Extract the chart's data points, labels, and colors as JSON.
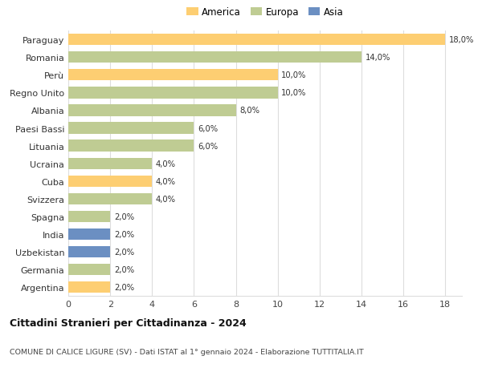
{
  "countries": [
    "Paraguay",
    "Romania",
    "Perù",
    "Regno Unito",
    "Albania",
    "Paesi Bassi",
    "Lituania",
    "Ucraina",
    "Cuba",
    "Svizzera",
    "Spagna",
    "India",
    "Uzbekistan",
    "Germania",
    "Argentina"
  ],
  "values": [
    18.0,
    14.0,
    10.0,
    10.0,
    8.0,
    6.0,
    6.0,
    4.0,
    4.0,
    4.0,
    2.0,
    2.0,
    2.0,
    2.0,
    2.0
  ],
  "continents": [
    "America",
    "Europa",
    "America",
    "Europa",
    "Europa",
    "Europa",
    "Europa",
    "Europa",
    "America",
    "Europa",
    "Europa",
    "Asia",
    "Asia",
    "Europa",
    "America"
  ],
  "colors": {
    "America": "#FDCE72",
    "Europa": "#BFCC93",
    "Asia": "#6B8FC2"
  },
  "legend_order": [
    "America",
    "Europa",
    "Asia"
  ],
  "title": "Cittadini Stranieri per Cittadinanza - 2024",
  "subtitle": "COMUNE DI CALICE LIGURE (SV) - Dati ISTAT al 1° gennaio 2024 - Elaborazione TUTTITALIA.IT",
  "xlim": [
    0,
    18
  ],
  "xticks": [
    0,
    2,
    4,
    6,
    8,
    10,
    12,
    14,
    16,
    18
  ],
  "bg_color": "#ffffff",
  "grid_color": "#dddddd",
  "bar_height": 0.65
}
